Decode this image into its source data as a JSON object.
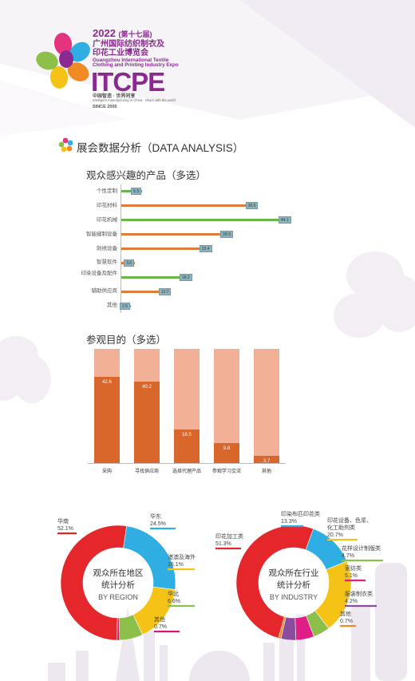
{
  "logo": {
    "year": "2022",
    "edition": "(第十七届)",
    "cn_line1": "广州国际纺织制衣及",
    "cn_line2": "印花工业博览会",
    "en_line1": "Guangzhou International Textile",
    "en_line2": "Clothing and Printing Industry Expo",
    "acronym": "ITCPE",
    "tagline_cn": "中国智造 · 世界同享",
    "tagline_en": "Intelligent manufacturing in China · Share with the world",
    "since": "SINCE 2005"
  },
  "section_title": "展会数据分析（DATA ANALYSIS）",
  "colors": {
    "accent": "#8a2a90",
    "bar_orange": "#d9662a",
    "bar_green": "#6ab547",
    "bar_light": "#f2b197"
  },
  "chart_data": [
    {
      "type": "bar",
      "orientation": "horizontal",
      "title": "观众感兴趣的产品（多选）",
      "categories": [
        "个性定制",
        "印花材料",
        "印花机械",
        "智能缝制设备",
        "刺绣设备",
        "智慧软件",
        "印染设备及配件",
        "辅助供应商",
        "其他"
      ],
      "values": [
        5.5,
        35.5,
        44.1,
        28.9,
        23.4,
        3.6,
        18.2,
        12.7,
        2.5
      ],
      "bar_colors": [
        "#6ab547",
        "#e07b39",
        "#6ab547",
        "#e07b39",
        "#e07b39",
        "#e07b39",
        "#6ab547",
        "#e07b39",
        "#6ab547"
      ],
      "xlim": [
        0,
        50
      ]
    },
    {
      "type": "bar",
      "title": "参观目的（多选）",
      "categories": [
        "采购",
        "寻找供应商",
        "选择代理产品",
        "参观学习交流",
        "其他"
      ],
      "values": [
        42.6,
        40.2,
        16.5,
        9.8,
        3.7
      ],
      "ylim": [
        0,
        56.6
      ]
    },
    {
      "type": "pie",
      "title": "观众所在地区",
      "center_line1": "观众所在地区",
      "center_line2": "统计分析",
      "center_en": "BY REGION",
      "slices": [
        {
          "name": "华南",
          "value": 52.1,
          "color": "#e5262b"
        },
        {
          "name": "华东",
          "value": 24.5,
          "color": "#2eaee3"
        },
        {
          "name": "港澳及海外",
          "value": 16.1,
          "color": "#f5c315"
        },
        {
          "name": "华北",
          "value": 6.6,
          "color": "#8cc04a"
        },
        {
          "name": "其他",
          "value": 0.7,
          "color": "#d6177a"
        }
      ]
    },
    {
      "type": "pie",
      "title": "观众所在行业",
      "center_line1": "观众所在行业",
      "center_line2": "统计分析",
      "center_en": "BY INDUSTRY",
      "slices": [
        {
          "name": "印花加工类",
          "value": 51.3,
          "color": "#e5262b"
        },
        {
          "name": "印染布匹印花类",
          "value": 13.3,
          "color": "#2eaee3"
        },
        {
          "name": "印花设备、色浆、化工助剂类",
          "value": 20.7,
          "color": "#f5c315"
        },
        {
          "name": "花样设计制版类",
          "value": 4.7,
          "color": "#8cc04a"
        },
        {
          "name": "家纺类",
          "value": 5.1,
          "color": "#e11d87"
        },
        {
          "name": "服装制衣类",
          "value": 4.2,
          "color": "#8a4c9c"
        },
        {
          "name": "其他",
          "value": 0.7,
          "color": "#f08a24"
        }
      ]
    }
  ],
  "donut1_labels": [
    {
      "name": "华南",
      "pct": "52.1%"
    },
    {
      "name": "华东",
      "pct": "24.5%"
    },
    {
      "name": "港澳及海外",
      "pct": "16.1%"
    },
    {
      "name": "华北",
      "pct": "6.6%"
    },
    {
      "name": "其他",
      "pct": "0.7%"
    }
  ],
  "donut2_labels": [
    {
      "name": "印花加工类",
      "pct": "51.3%"
    },
    {
      "name": "印染布匹印花类",
      "pct": "13.3%"
    },
    {
      "name": "印花设备、色浆、",
      "name2": "化工助剂类",
      "pct": "20.7%"
    },
    {
      "name": "花样设计制版类",
      "pct": "4.7%"
    },
    {
      "name": "家纺类",
      "pct": "5.1%"
    },
    {
      "name": "服装制衣类",
      "pct": "4.2%"
    },
    {
      "name": "其他",
      "pct": "0.7%"
    }
  ]
}
